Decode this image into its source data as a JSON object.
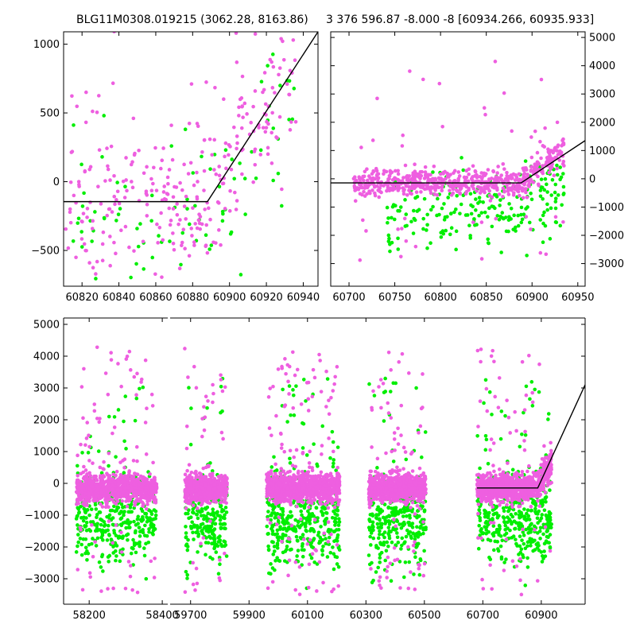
{
  "chart_data": [
    {
      "type": "scatter",
      "title": "BLG11M0308.019215 (3062.28, 8163.86)",
      "xlabel": "",
      "ylabel": "",
      "xlim": [
        60810,
        60948
      ],
      "ylim": [
        -760,
        1090
      ],
      "xticks": [
        "60820",
        "60840",
        "60860",
        "60880",
        "60900",
        "60920",
        "60940"
      ],
      "yticks": [
        "-500",
        "0",
        "500",
        "1000"
      ],
      "y_axis_side": "left",
      "grid": false,
      "series_colors": {
        "green": "#00ee00",
        "magenta": "#ee5fe0",
        "model": "#000000"
      },
      "model_line": {
        "x": [
          60810,
          60888,
          60948
        ],
        "y": [
          -145,
          -145,
          1090
        ]
      }
    },
    {
      "type": "scatter",
      "title": "3 376 596.87 -8.000 -8 [60934.266, 60935.933]",
      "xlabel": "",
      "ylabel": "",
      "xlim": [
        60680,
        60958
      ],
      "ylim": [
        -3800,
        5200
      ],
      "xticks": [
        "60700",
        "60750",
        "60800",
        "60850",
        "60900",
        "60950"
      ],
      "yticks": [
        "-3000",
        "-2000",
        "-1000",
        "0",
        "1000",
        "2000",
        "3000",
        "4000",
        "5000"
      ],
      "y_axis_side": "right",
      "grid": false,
      "model_line": {
        "x": [
          60680,
          60888,
          60958
        ],
        "y": [
          -145,
          -145,
          1350
        ]
      }
    },
    {
      "type": "scatter",
      "title": "",
      "xlabel": "",
      "ylabel": "",
      "x_breaks": [
        {
          "xlim": [
            58130,
            58415
          ],
          "xticks": [
            "58200",
            "58400"
          ]
        },
        {
          "xlim": [
            59630,
            61050
          ],
          "xticks": [
            "59700",
            "59900",
            "60100",
            "60300",
            "60500",
            "60700",
            "60900"
          ]
        }
      ],
      "ylim": [
        -3800,
        5200
      ],
      "yticks": [
        "-3000",
        "-2000",
        "-1000",
        "0",
        "1000",
        "2000",
        "3000",
        "4000",
        "5000"
      ],
      "grid": false,
      "season_clusters": [
        [
          58165,
          58385
        ],
        [
          59680,
          59825
        ],
        [
          59960,
          60210
        ],
        [
          60310,
          60505
        ],
        [
          60680,
          60935
        ]
      ],
      "model_line": {
        "x": [
          60680,
          60888,
          61050
        ],
        "y": [
          -145,
          -145,
          3100
        ]
      }
    }
  ]
}
